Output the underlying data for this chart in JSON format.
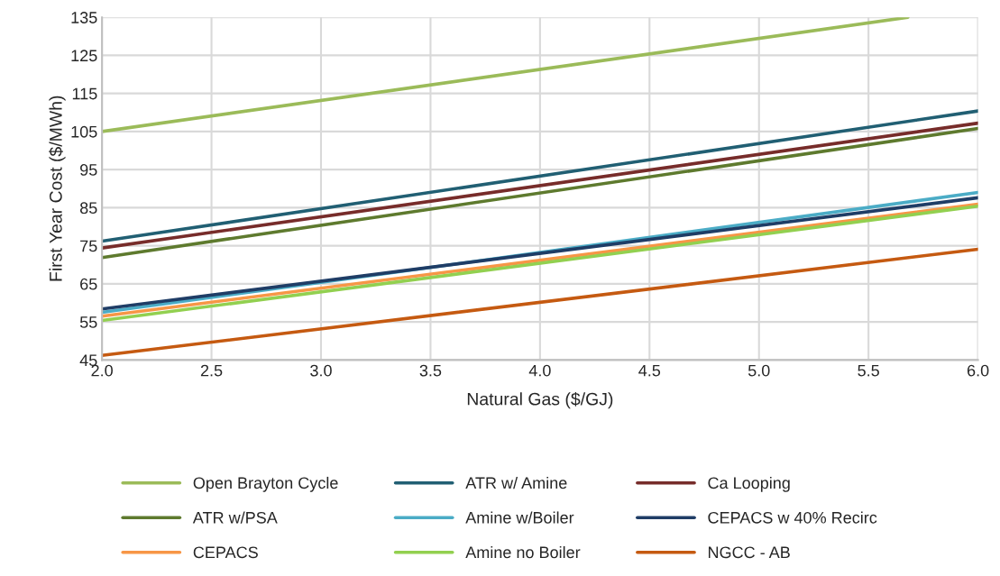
{
  "chart_data": {
    "type": "line",
    "xlabel": "Natural Gas ($/GJ)",
    "ylabel": "First Year Cost ($/MWh)",
    "x": [
      2.0,
      6.0
    ],
    "series": [
      {
        "name": "Open Brayton Cycle",
        "color": "#9bbb59",
        "x": [
          2.0,
          5.68
        ],
        "values": [
          105,
          135
        ]
      },
      {
        "name": "ATR w/ Amine",
        "color": "#215f73",
        "values": [
          76.2,
          110.4
        ]
      },
      {
        "name": "Ca Looping",
        "color": "#772c2a",
        "values": [
          74.4,
          107.2
        ]
      },
      {
        "name": "ATR w/PSA",
        "color": "#5e7a2e",
        "values": [
          71.9,
          105.8
        ]
      },
      {
        "name": "Amine w/Boiler",
        "color": "#4bacc6",
        "values": [
          57.5,
          89.0
        ]
      },
      {
        "name": "CEPACS w 40% Recirc",
        "color": "#1f3d66",
        "values": [
          58.4,
          87.6
        ]
      },
      {
        "name": "CEPACS",
        "color": "#f79646",
        "values": [
          56.5,
          85.9
        ]
      },
      {
        "name": "Amine no Boiler",
        "color": "#92d050",
        "values": [
          55.4,
          85.4
        ]
      },
      {
        "name": "NGCC - AB",
        "color": "#c55a11",
        "values": [
          46.2,
          74.1
        ]
      }
    ],
    "xlim": [
      2.0,
      6.0
    ],
    "xticks": [
      {
        "value": 2.0,
        "label": "2.0"
      },
      {
        "value": 2.5,
        "label": "2.5"
      },
      {
        "value": 3.0,
        "label": "3.0"
      },
      {
        "value": 3.5,
        "label": "3.5"
      },
      {
        "value": 4.0,
        "label": "4.0"
      },
      {
        "value": 4.5,
        "label": "4.5"
      },
      {
        "value": 5.0,
        "label": "5.0"
      },
      {
        "value": 5.5,
        "label": "5.5"
      },
      {
        "value": 6.0,
        "label": "6.0"
      }
    ],
    "ylim": [
      45,
      135
    ],
    "yticks": [
      45,
      55,
      65,
      75,
      85,
      95,
      105,
      115,
      125,
      135
    ],
    "grid": true,
    "legend": "bottom",
    "marker": "none",
    "line_style": "solid"
  }
}
